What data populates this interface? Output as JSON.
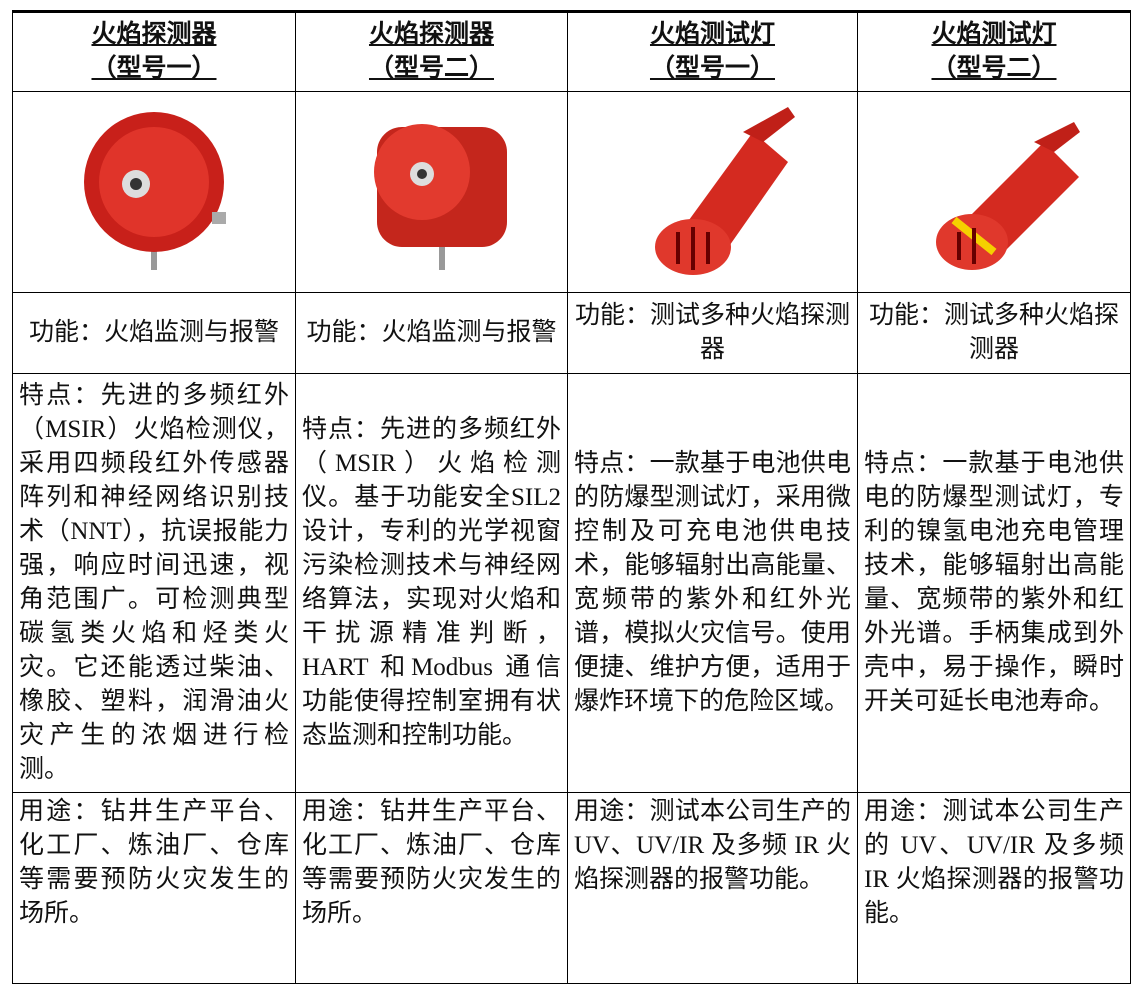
{
  "table": {
    "header": [
      {
        "name": "火焰探测器",
        "model": "（型号一）"
      },
      {
        "name": "火焰探测器",
        "model": "（型号二）"
      },
      {
        "name": "火焰测试灯",
        "model": "（型号一）"
      },
      {
        "name": "火焰测试灯",
        "model": "（型号二）"
      }
    ],
    "function": [
      "功能：火焰监测与报警",
      "功能：火焰监测与报警",
      "功能：测试多种火焰探测器",
      "功能：测试多种火焰探测器"
    ],
    "feature": [
      "特点：先进的多频红外（MSIR）火焰检测仪，采用四频段红外传感器阵列和神经网络识别技术（NNT），抗误报能力强，响应时间迅速，视角范围广。可检测典型碳氢类火焰和烃类火灾。它还能透过柴油、橡胶、塑料，润滑油火灾产生的浓烟进行检测。",
      "特点：先进的多频红外（MSIR）火焰检测仪。基于功能安全SIL2 设计，专利的光学视窗污染检测技术与神经网络算法，实现对火焰和干扰源精准判断，HART 和Modbus 通信功能使得控制室拥有状态监测和控制功能。",
      "特点：一款基于电池供电的防爆型测试灯，采用微控制及可充电池供电技术，能够辐射出高能量、宽频带的紫外和红外光谱，模拟火灾信号。使用便捷、维护方便，适用于爆炸环境下的危险区域。",
      "特点：一款基于电池供电的防爆型测试灯，专利的镍氢电池充电管理技术，能够辐射出高能量、宽频带的紫外和红外光谱。手柄集成到外壳中，易于操作，瞬时开关可延长电池寿命。"
    ],
    "usage": [
      "用途：钻井生产平台、化工厂、炼油厂、仓库等需要预防火灾发生的场所。",
      "用途：钻井生产平台、化工厂、炼油厂、仓库等需要预防火灾发生的场所。",
      "用途：测试本公司生产的 UV、UV/IR 及多频 IR 火焰探测器的报警功能。",
      "用途：测试本公司生产的 UV、UV/IR 及多频 IR 火焰探测器的报警功能。"
    ]
  }
}
